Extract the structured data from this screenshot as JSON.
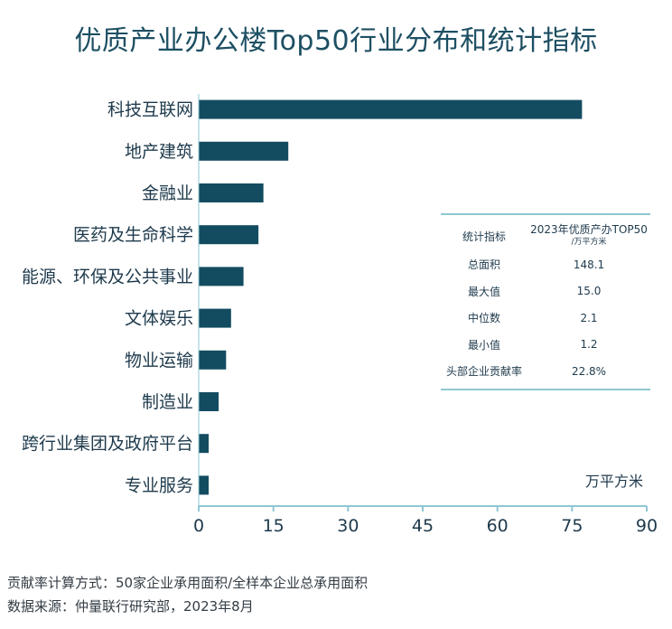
{
  "title": "优质产业办公楼Top50行业分布和统计指标",
  "chart_data": {
    "type": "bar",
    "orientation": "horizontal",
    "categories": [
      "科技互联网",
      "地产建筑",
      "金融业",
      "医药及生命科学",
      "能源、环保及公共事业",
      "文体娱乐",
      "物业运输",
      "制造业",
      "跨行业集团及政府平台",
      "专业服务"
    ],
    "values": [
      77,
      18,
      13,
      12,
      9,
      6.5,
      5.5,
      4,
      2,
      2
    ],
    "xlim": [
      0,
      90
    ],
    "xticks": [
      0,
      15,
      30,
      45,
      60,
      75,
      90
    ],
    "grid": false,
    "bar_color": "#134c60"
  },
  "stats_table": {
    "header_key": "统计指标",
    "header_value": "2023年优质产办TOP50",
    "header_unit": "/万平方米",
    "rows": [
      {
        "key": "总面积",
        "value": "148.1"
      },
      {
        "key": "最大值",
        "value": "15.0"
      },
      {
        "key": "中位数",
        "value": "2.1"
      },
      {
        "key": "最小值",
        "value": "1.2"
      },
      {
        "key": "头部企业贡献率",
        "value": "22.8%"
      }
    ]
  },
  "unit_label": "万平方米",
  "footnotes": {
    "formula": "贡献率计算方式：50家企业承用面积/全样本企业总承用面积",
    "source": "数据来源：仲量联行研究部，2023年8月"
  }
}
